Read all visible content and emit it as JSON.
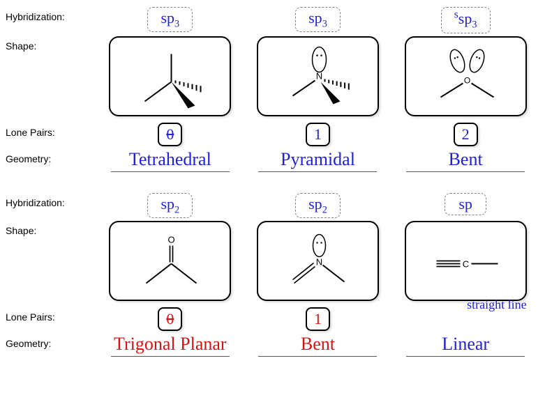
{
  "labels": {
    "hybridization": "Hybridization:",
    "shape": "Shape:",
    "lonepairs": "Lone Pairs:",
    "geometry": "Geometry:"
  },
  "rows": [
    {
      "cells": [
        {
          "hyb": "sp",
          "hyb_sub": "3",
          "hyb_color": "#2020dd",
          "lonepairs": "0",
          "lonepairs_strike": true,
          "lp_color": "#2020dd",
          "geometry": "Tetrahedral",
          "geom_color": "#2020dd",
          "shape": "tetrahedral-c",
          "atom_label": "",
          "lobe_top": false,
          "lobe_pair": false
        },
        {
          "hyb": "sp",
          "hyb_sub": "3",
          "hyb_color": "#2020dd",
          "lonepairs": "1",
          "lonepairs_strike": false,
          "lp_color": "#2020dd",
          "geometry": "Pyramidal",
          "geom_color": "#2020dd",
          "shape": "pyramidal-n",
          "atom_label": "N",
          "lobe_top": true,
          "lobe_pair": false
        },
        {
          "hyb": "sp",
          "hyb_sub": "3",
          "hyb_color": "#2020dd",
          "hyb_sup": "s",
          "lonepairs": "2",
          "lonepairs_strike": false,
          "lp_color": "#2020dd",
          "geometry": "Bent",
          "geom_color": "#2020dd",
          "shape": "bent-o",
          "atom_label": "O",
          "lobe_top": false,
          "lobe_pair": true
        }
      ]
    },
    {
      "cells": [
        {
          "hyb": "sp",
          "hyb_sub": "2",
          "hyb_color": "#2020dd",
          "lonepairs": "0",
          "lonepairs_strike": true,
          "lp_color": "#dd1010",
          "geometry": "Trigonal Planar",
          "geom_color": "#dd1010",
          "shape": "trigonal-c",
          "atom_label": "",
          "dbl_to": "O"
        },
        {
          "hyb": "sp",
          "hyb_sub": "2",
          "hyb_color": "#2020dd",
          "lonepairs": "1",
          "lonepairs_strike": false,
          "lp_color": "#dd1010",
          "geometry": "Bent",
          "geom_color": "#dd1010",
          "shape": "bent-n",
          "atom_label": "N",
          "lobe_top": true
        },
        {
          "hyb": "sp",
          "hyb_sub": "",
          "hyb_color": "#2020dd",
          "lonepairs": "",
          "lonepairs_strike": false,
          "lp_color": "#2020dd",
          "geometry": "Linear",
          "geom_color": "#2020dd",
          "shape": "linear-c",
          "atom_label": "C",
          "annotation": "straight line"
        }
      ]
    }
  ],
  "style": {
    "stroke": "#000000",
    "box_border": "#000000",
    "dashed_border": "#808080",
    "bg": "#ffffff"
  }
}
